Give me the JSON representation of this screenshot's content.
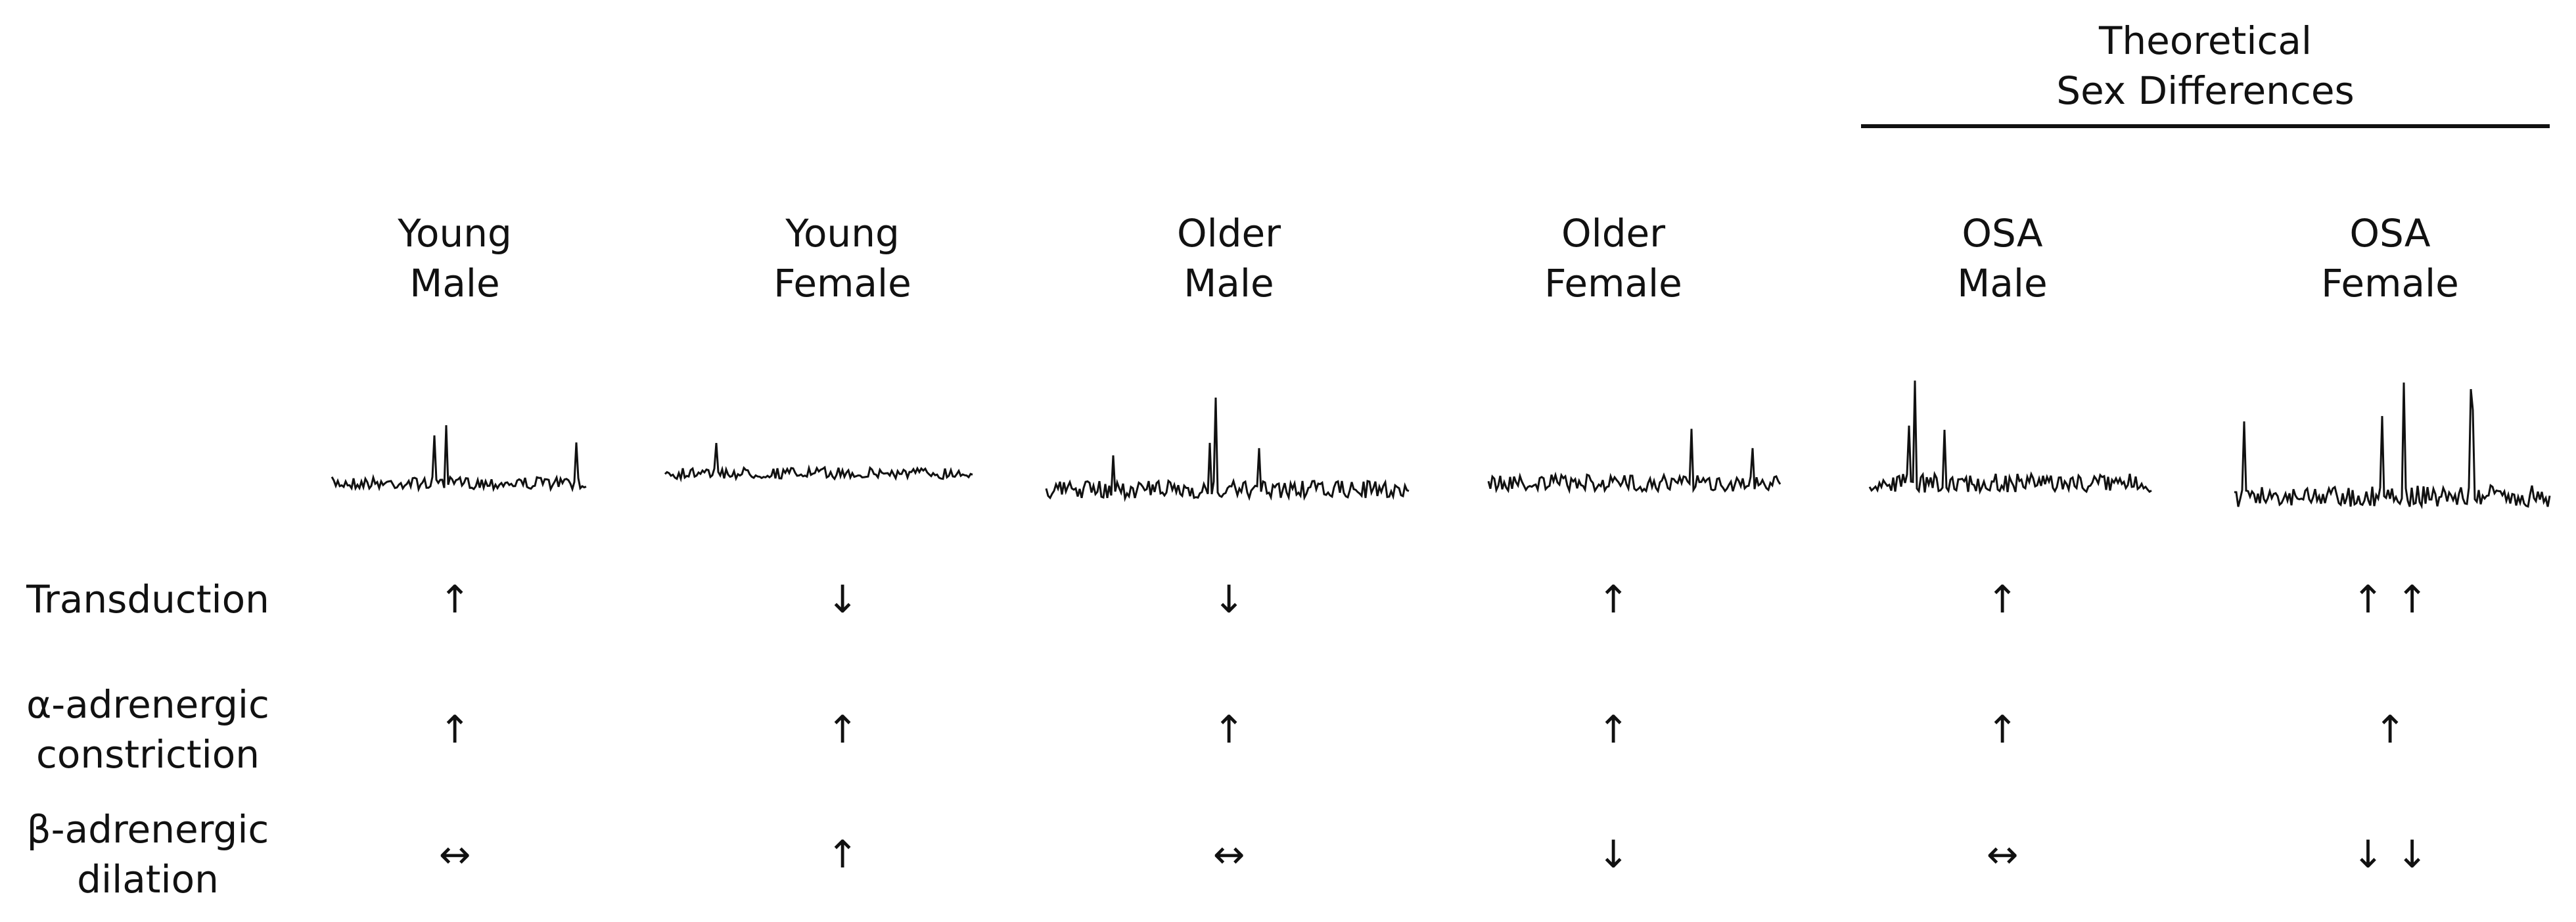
{
  "group_header": {
    "label": [
      "Theoretical",
      "Sex Differences"
    ]
  },
  "columns": [
    {
      "label": [
        "Young",
        "Male"
      ]
    },
    {
      "label": [
        "Young",
        "Female"
      ]
    },
    {
      "label": [
        "Older",
        "Male"
      ]
    },
    {
      "label": [
        "Older",
        "Female"
      ]
    },
    {
      "label": [
        "OSA",
        "Male"
      ]
    },
    {
      "label": [
        "OSA",
        "Female"
      ]
    }
  ],
  "rows": [
    {
      "label": [
        "Transduction"
      ],
      "cells": [
        "↑",
        "↓",
        "↓",
        "↑",
        "↑",
        "↑ ↑"
      ]
    },
    {
      "label": [
        "α-adrenergic",
        "constriction"
      ],
      "cells": [
        "↑",
        "↑",
        "↑",
        "↑",
        "↑",
        "↑"
      ]
    },
    {
      "label": [
        "β-adrenergic",
        "dilation"
      ],
      "cells": [
        "↔",
        "↑",
        "↔",
        "↓",
        "↔",
        "↓ ↓"
      ]
    }
  ]
}
